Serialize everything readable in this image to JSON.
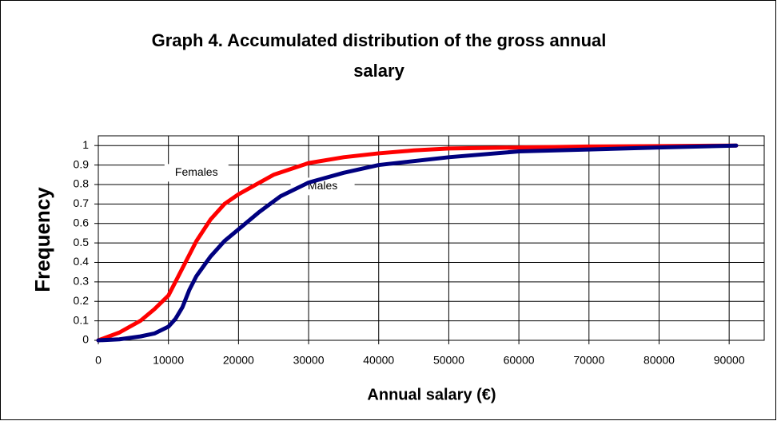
{
  "chart_data": {
    "type": "line",
    "title": [
      "Graph 4. Accumulated distribution of the gross annual",
      "salary"
    ],
    "x_label": "Annual salary (€)",
    "y_label": "Frequency",
    "xlim": [
      0,
      95000
    ],
    "xticks": [
      0,
      10000,
      20000,
      30000,
      40000,
      50000,
      60000,
      70000,
      80000,
      90000
    ],
    "ylim": [
      0,
      1.05
    ],
    "yticks": [
      0,
      0.1,
      0.2,
      0.3,
      0.4,
      0.5,
      0.6,
      0.7,
      0.8,
      0.9,
      1
    ],
    "grid": true,
    "annotations": [
      {
        "text": "Females",
        "x": 14000,
        "y": 0.86
      },
      {
        "text": "Males",
        "x": 32000,
        "y": 0.79
      }
    ],
    "series": [
      {
        "name": "Females",
        "color": "#ff0000",
        "x": [
          0,
          3000,
          6000,
          8000,
          10000,
          12000,
          14000,
          16000,
          18000,
          20000,
          22000,
          25000,
          30000,
          35000,
          40000,
          45000,
          50000,
          60000,
          70000,
          80000,
          91000
        ],
        "values": [
          0,
          0.04,
          0.1,
          0.16,
          0.23,
          0.37,
          0.51,
          0.62,
          0.7,
          0.75,
          0.79,
          0.85,
          0.91,
          0.94,
          0.96,
          0.975,
          0.985,
          0.99,
          0.995,
          0.997,
          1
        ]
      },
      {
        "name": "Males",
        "color": "#00007f",
        "x": [
          0,
          3000,
          6000,
          8000,
          10000,
          11000,
          12000,
          13000,
          14000,
          16000,
          18000,
          20000,
          23000,
          26000,
          30000,
          35000,
          40000,
          50000,
          60000,
          70000,
          80000,
          91000
        ],
        "values": [
          0,
          0.005,
          0.02,
          0.035,
          0.07,
          0.11,
          0.17,
          0.26,
          0.33,
          0.43,
          0.51,
          0.57,
          0.66,
          0.74,
          0.81,
          0.86,
          0.9,
          0.94,
          0.97,
          0.98,
          0.99,
          1
        ]
      }
    ]
  }
}
